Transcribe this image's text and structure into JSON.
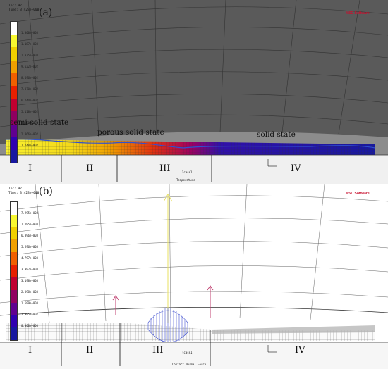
{
  "panel_a": {
    "label": "(a)",
    "header": [
      "Inc: 97",
      "Time: 3.423e+000"
    ],
    "logo": "MSC Software",
    "scale_ticks": [
      "1.300e+003",
      "1.187e+003",
      "1.075e+003",
      "9.622e+002",
      "8.496e+002",
      "7.370e+002",
      "6.244e+002",
      "5.118e+002",
      "3.992e+002",
      "2.866e+002",
      "1.740e+002"
    ],
    "annotations": {
      "semi_solid": "semi-solid state",
      "porous": "porous solid state",
      "solid": "solid state"
    },
    "regions": [
      "I",
      "II",
      "III",
      "IV"
    ],
    "footer_small": "lcase1",
    "footer_title": "Temperature"
  },
  "panel_b": {
    "label": "(b)",
    "header": [
      "Inc: 97",
      "Time: 3.423e+000"
    ],
    "logo": "MSC Software",
    "scale_ticks": [
      "7.995e+003",
      "7.195e+003",
      "6.396e+003",
      "5.596e+003",
      "4.797e+003",
      "3.997e+003",
      "3.198e+003",
      "2.398e+003",
      "1.599e+003",
      "7.995e+002",
      "0.000e+000"
    ],
    "regions": [
      "I",
      "II",
      "III",
      "IV"
    ],
    "footer_small": "lcase1",
    "footer_title": "Contact Normal Force"
  },
  "colors": {
    "scale": [
      "#ffffff",
      "#f8f830",
      "#f0d000",
      "#f0a000",
      "#f06000",
      "#e82000",
      "#c00030",
      "#900060",
      "#600090",
      "#3000b0",
      "#1818a0"
    ]
  }
}
